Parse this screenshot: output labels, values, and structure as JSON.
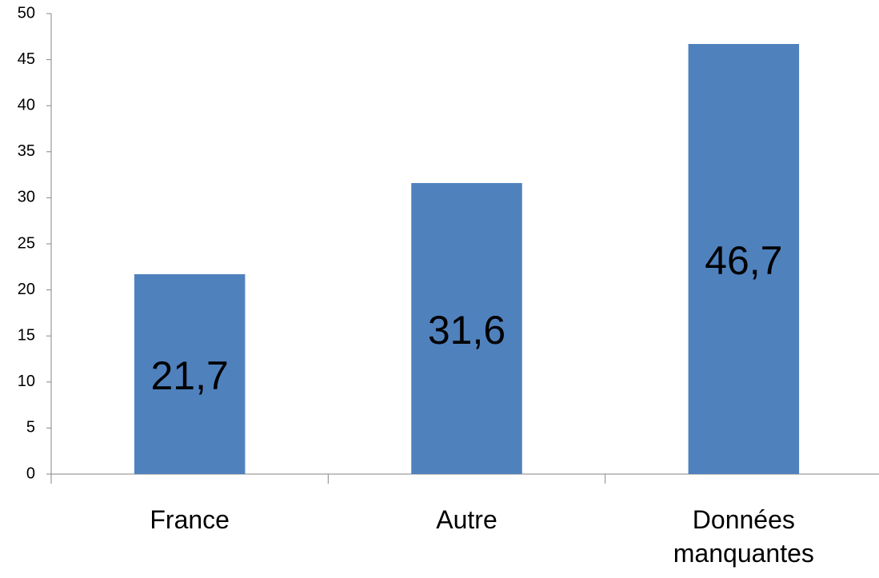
{
  "chart_data": {
    "type": "bar",
    "categories": [
      "France",
      "Autre",
      "Données manquantes"
    ],
    "values": [
      21.7,
      31.6,
      46.7
    ],
    "value_labels": [
      "21,7",
      "31,6",
      "46,7"
    ],
    "color": "#4f81bd",
    "ylim": [
      0,
      50
    ],
    "yticks": [
      0,
      5,
      10,
      15,
      20,
      25,
      30,
      35,
      40,
      45,
      50
    ],
    "grid": false
  }
}
